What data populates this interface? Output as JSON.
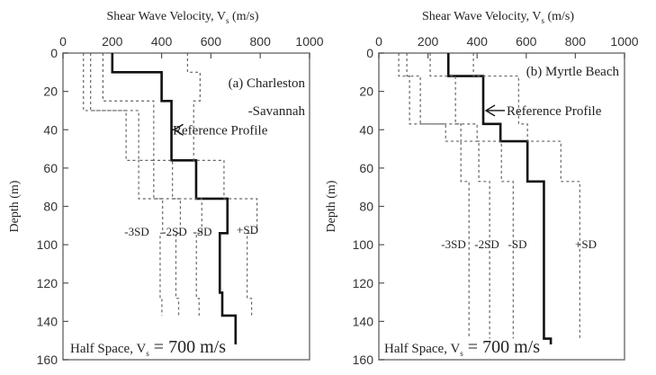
{
  "chart_data": [
    {
      "type": "line",
      "panel_label": [
        "(a) Charleston",
        "-Savannah"
      ],
      "title": "Shear Wave Velocity, V",
      "title_sub": "s",
      "title_unit": " (m/s)",
      "ylabel": "Depth (m)",
      "xlim": [
        0,
        1000
      ],
      "ylim": [
        0,
        160
      ],
      "xticks": [
        "0",
        "200",
        "400",
        "600",
        "800",
        "1000"
      ],
      "yticks": [
        "0",
        "20",
        "40",
        "60",
        "80",
        "100",
        "120",
        "140",
        "160"
      ],
      "annotation": "Reference Profile",
      "half_space": {
        "prefix": "Half Space, V",
        "sub": "s",
        "suffix": " = 700 m/s"
      },
      "series": [
        {
          "name": "Reference Profile",
          "style": "solid",
          "label": "",
          "layers": [
            [
              0,
              10,
              200
            ],
            [
              10,
              25,
              400
            ],
            [
              25,
              56,
              440
            ],
            [
              56,
              76,
              540
            ],
            [
              76,
              94,
              667
            ],
            [
              94,
              125,
              636
            ],
            [
              125,
              137,
              646
            ],
            [
              137,
              152,
              700
            ]
          ]
        },
        {
          "name": "-3SD",
          "style": "dashed",
          "label": "-3SD",
          "layers": [
            [
              0,
              30,
              83
            ],
            [
              30,
              56,
              256
            ],
            [
              56,
              76,
              307
            ],
            [
              76,
              94,
              404
            ],
            [
              94,
              128,
              394
            ],
            [
              128,
              137,
              401
            ]
          ]
        },
        {
          "name": "-2SD",
          "style": "dashed",
          "label": "-2SD",
          "layers": [
            [
              0,
              30,
              112
            ],
            [
              30,
              56,
              307
            ],
            [
              56,
              76,
              368
            ],
            [
              76,
              94,
              476
            ],
            [
              94,
              128,
              458
            ],
            [
              128,
              137,
              469
            ]
          ]
        },
        {
          "name": "-SD",
          "style": "dashed",
          "label": "-SD",
          "layers": [
            [
              0,
              25,
              162
            ],
            [
              25,
              56,
              368
            ],
            [
              56,
              76,
              444
            ],
            [
              76,
              94,
              563
            ],
            [
              94,
              128,
              541
            ],
            [
              128,
              137,
              552
            ]
          ]
        },
        {
          "name": "+SD",
          "style": "dashed",
          "label": "+SD",
          "layers": [
            [
              0,
              10,
              505
            ],
            [
              10,
              25,
              556
            ],
            [
              25,
              56,
              530
            ],
            [
              56,
              76,
              653
            ],
            [
              76,
              94,
              787
            ],
            [
              94,
              128,
              747
            ],
            [
              128,
              137,
              765
            ]
          ]
        }
      ]
    },
    {
      "type": "line",
      "panel_label": [
        "(b) Myrtle Beach"
      ],
      "title": "Shear Wave Velocity, V",
      "title_sub": "s",
      "title_unit": " (m/s)",
      "ylabel": "Depth (m)",
      "xlim": [
        0,
        1000
      ],
      "ylim": [
        0,
        160
      ],
      "xticks": [
        "0",
        "200",
        "400",
        "600",
        "800",
        "1000"
      ],
      "yticks": [
        "0",
        "20",
        "40",
        "60",
        "80",
        "100",
        "120",
        "140",
        "160"
      ],
      "annotation": "Reference Profile",
      "half_space": {
        "prefix": "Half Space, V",
        "sub": "s",
        "suffix": " = 700 m/s"
      },
      "series": [
        {
          "name": "Reference Profile",
          "style": "solid",
          "label": "",
          "layers": [
            [
              0,
              12,
              283
            ],
            [
              12,
              37,
              425
            ],
            [
              37,
              46,
              495
            ],
            [
              46,
              67,
              605
            ],
            [
              67,
              149,
              672
            ],
            [
              149,
              152,
              700
            ]
          ]
        },
        {
          "name": "-3SD",
          "style": "dashed",
          "label": "-3SD",
          "layers": [
            [
              0,
              12,
              81
            ],
            [
              12,
              37,
              125
            ],
            [
              37,
              46,
              272
            ],
            [
              46,
              67,
              334
            ],
            [
              67,
              149,
              367
            ]
          ]
        },
        {
          "name": "-2SD",
          "style": "dashed",
          "label": "-2SD",
          "layers": [
            [
              0,
              12,
              114
            ],
            [
              12,
              37,
              169
            ],
            [
              37,
              46,
              334
            ],
            [
              46,
              67,
              407
            ],
            [
              67,
              149,
              451
            ]
          ]
        },
        {
          "name": "-SD",
          "style": "dashed",
          "label": "-SD",
          "layers": [
            [
              0,
              12,
              209
            ],
            [
              12,
              37,
              312
            ],
            [
              37,
              46,
              400
            ],
            [
              46,
              67,
              499
            ],
            [
              67,
              149,
              547
            ]
          ]
        },
        {
          "name": "+SD",
          "style": "dashed",
          "label": "+SD",
          "layers": [
            [
              0,
              12,
              385
            ],
            [
              12,
              37,
              569
            ],
            [
              37,
              46,
              605
            ],
            [
              46,
              67,
              741
            ],
            [
              67,
              149,
              818
            ]
          ]
        }
      ]
    }
  ]
}
